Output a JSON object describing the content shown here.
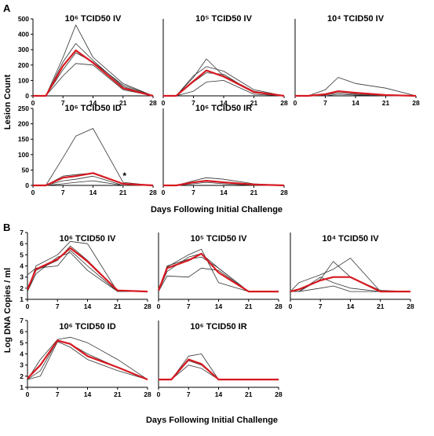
{
  "figure": {
    "panel_A_label": "A",
    "panel_B_label": "B"
  },
  "colors": {
    "individual": "#333333",
    "mean": "#d71920",
    "axis": "#000000"
  },
  "chart_data": [
    {
      "group": "A",
      "type": "line",
      "title": "10⁶ TCID50 IV",
      "x": [
        0,
        3,
        7,
        10,
        14,
        21,
        28
      ],
      "xticks": [
        0,
        7,
        14,
        21,
        28
      ],
      "ylim": [
        0,
        500
      ],
      "yticks": [
        0,
        100,
        200,
        300,
        400,
        500
      ],
      "ylabel": "Lesion Count",
      "xlabel": "",
      "series": [
        {
          "kind": "individual",
          "values": [
            0,
            0,
            250,
            460,
            250,
            80,
            0
          ]
        },
        {
          "kind": "individual",
          "values": [
            0,
            0,
            220,
            340,
            230,
            60,
            0
          ]
        },
        {
          "kind": "individual",
          "values": [
            0,
            0,
            170,
            280,
            220,
            70,
            0
          ]
        },
        {
          "kind": "individual",
          "values": [
            0,
            0,
            130,
            210,
            200,
            40,
            0
          ]
        },
        {
          "kind": "mean",
          "values": [
            0,
            0,
            195,
            295,
            215,
            50,
            0
          ]
        }
      ]
    },
    {
      "group": "A",
      "type": "line",
      "title": "10⁵ TCID50 IV",
      "x": [
        0,
        3,
        7,
        10,
        14,
        21,
        28
      ],
      "xticks": [
        0,
        7,
        14,
        21,
        28
      ],
      "ylim": [
        0,
        500
      ],
      "yticks": [],
      "ylabel": "",
      "xlabel": "",
      "series": [
        {
          "kind": "individual",
          "values": [
            0,
            0,
            120,
            240,
            130,
            30,
            0
          ]
        },
        {
          "kind": "individual",
          "values": [
            0,
            0,
            130,
            190,
            160,
            40,
            0
          ]
        },
        {
          "kind": "individual",
          "values": [
            0,
            0,
            90,
            150,
            140,
            20,
            0
          ]
        },
        {
          "kind": "individual",
          "values": [
            0,
            0,
            30,
            90,
            100,
            10,
            0
          ]
        },
        {
          "kind": "mean",
          "values": [
            0,
            0,
            95,
            165,
            125,
            25,
            0
          ]
        }
      ]
    },
    {
      "group": "A",
      "type": "line",
      "title": "10⁴ TCID50 IV",
      "x": [
        0,
        3,
        7,
        10,
        14,
        21,
        28
      ],
      "xticks": [
        0,
        7,
        14,
        21,
        28
      ],
      "ylim": [
        0,
        500
      ],
      "yticks": [],
      "ylabel": "",
      "xlabel": "",
      "series": [
        {
          "kind": "individual",
          "values": [
            0,
            0,
            40,
            120,
            80,
            50,
            0
          ]
        },
        {
          "kind": "individual",
          "values": [
            0,
            0,
            10,
            30,
            15,
            5,
            0
          ]
        },
        {
          "kind": "individual",
          "values": [
            0,
            0,
            5,
            20,
            10,
            0,
            0
          ]
        },
        {
          "kind": "individual",
          "values": [
            0,
            0,
            0,
            10,
            5,
            0,
            0
          ]
        },
        {
          "kind": "mean",
          "values": [
            0,
            0,
            10,
            30,
            20,
            5,
            0
          ]
        }
      ]
    },
    {
      "group": "A",
      "type": "line",
      "title": "10⁶ TCID50 ID",
      "x": [
        0,
        3,
        7,
        10,
        14,
        21,
        28
      ],
      "xticks": [
        0,
        7,
        14,
        21,
        28
      ],
      "ylim": [
        0,
        250
      ],
      "yticks": [
        0,
        50,
        100,
        150,
        200,
        250
      ],
      "ylabel": "",
      "xlabel": "",
      "annotation": {
        "text": "*",
        "x": 21
      },
      "series": [
        {
          "kind": "individual",
          "values": [
            0,
            0,
            90,
            160,
            185,
            10,
            0
          ]
        },
        {
          "kind": "individual",
          "values": [
            0,
            0,
            30,
            35,
            40,
            5,
            0
          ]
        },
        {
          "kind": "individual",
          "values": [
            0,
            0,
            15,
            20,
            30,
            0,
            0
          ]
        },
        {
          "kind": "individual",
          "values": [
            0,
            0,
            5,
            10,
            15,
            0,
            0
          ]
        },
        {
          "kind": "mean",
          "values": [
            0,
            0,
            25,
            30,
            40,
            5,
            0
          ]
        }
      ]
    },
    {
      "group": "A",
      "type": "line",
      "title": "10⁶ TCID50 IR",
      "x": [
        0,
        3,
        7,
        10,
        14,
        21,
        28
      ],
      "xticks": [
        0,
        7,
        14,
        21,
        28
      ],
      "ylim": [
        0,
        250
      ],
      "yticks": [],
      "ylabel": "",
      "xlabel": "Days Following Initial Challenge",
      "series": [
        {
          "kind": "individual",
          "values": [
            0,
            0,
            15,
            25,
            20,
            5,
            0
          ]
        },
        {
          "kind": "individual",
          "values": [
            0,
            0,
            10,
            15,
            10,
            0,
            0
          ]
        },
        {
          "kind": "individual",
          "values": [
            0,
            0,
            5,
            10,
            5,
            0,
            0
          ]
        },
        {
          "kind": "mean",
          "values": [
            0,
            0,
            10,
            15,
            10,
            3,
            0
          ]
        }
      ]
    },
    {
      "group": "B",
      "type": "line",
      "title": "10⁶ TCID50 IV",
      "x": [
        0,
        2,
        7,
        10,
        14,
        21,
        28
      ],
      "xticks": [
        0,
        7,
        14,
        21,
        28
      ],
      "ylim": [
        1,
        7
      ],
      "yticks": [
        1,
        2,
        3,
        4,
        5,
        6,
        7
      ],
      "ylabel": "Log DNA Copies / ml",
      "xlabel": "",
      "series": [
        {
          "kind": "individual",
          "values": [
            1.7,
            4.0,
            5.0,
            6.2,
            6.0,
            1.7,
            1.7
          ]
        },
        {
          "kind": "individual",
          "values": [
            1.7,
            3.6,
            4.5,
            5.8,
            4.5,
            1.8,
            1.7
          ]
        },
        {
          "kind": "individual",
          "values": [
            1.7,
            3.3,
            4.8,
            5.2,
            3.6,
            1.7,
            1.7
          ]
        },
        {
          "kind": "individual",
          "values": [
            3.2,
            3.8,
            4.0,
            5.4,
            4.0,
            1.7,
            1.7
          ]
        },
        {
          "kind": "mean",
          "values": [
            1.9,
            3.7,
            4.6,
            5.6,
            4.4,
            1.8,
            1.7
          ]
        }
      ]
    },
    {
      "group": "B",
      "type": "line",
      "title": "10⁵ TCID50 IV",
      "x": [
        0,
        2,
        7,
        10,
        14,
        21,
        28
      ],
      "xticks": [
        0,
        7,
        14,
        21,
        28
      ],
      "ylim": [
        1,
        7
      ],
      "yticks": [],
      "ylabel": "",
      "xlabel": "",
      "series": [
        {
          "kind": "individual",
          "values": [
            1.7,
            3.9,
            5.0,
            5.5,
            2.5,
            1.7,
            1.7
          ]
        },
        {
          "kind": "individual",
          "values": [
            1.7,
            3.5,
            4.8,
            5.1,
            3.8,
            1.7,
            1.7
          ]
        },
        {
          "kind": "individual",
          "values": [
            1.7,
            3.1,
            3.0,
            3.8,
            3.6,
            1.7,
            1.7
          ]
        },
        {
          "kind": "individual",
          "values": [
            1.7,
            4.0,
            4.6,
            4.8,
            3.8,
            1.7,
            1.7
          ]
        },
        {
          "kind": "mean",
          "values": [
            1.8,
            3.8,
            4.5,
            5.1,
            3.4,
            1.7,
            1.7
          ]
        }
      ]
    },
    {
      "group": "B",
      "type": "line",
      "title": "10⁴ TCID50 IV",
      "x": [
        0,
        2,
        7,
        10,
        14,
        21,
        28
      ],
      "xticks": [
        0,
        7,
        14,
        21,
        28
      ],
      "ylim": [
        1,
        7
      ],
      "yticks": [],
      "ylabel": "",
      "xlabel": "",
      "series": [
        {
          "kind": "individual",
          "values": [
            1.7,
            2.5,
            3.2,
            3.7,
            4.7,
            1.7,
            1.7
          ]
        },
        {
          "kind": "individual",
          "values": [
            1.7,
            1.7,
            2.8,
            4.4,
            3.0,
            1.8,
            1.7
          ]
        },
        {
          "kind": "individual",
          "values": [
            1.7,
            1.7,
            3.0,
            2.5,
            2.0,
            1.7,
            1.7
          ]
        },
        {
          "kind": "individual",
          "values": [
            1.7,
            1.7,
            2.0,
            2.2,
            1.7,
            1.7,
            1.7
          ]
        },
        {
          "kind": "mean",
          "values": [
            1.7,
            1.9,
            2.7,
            3.0,
            3.0,
            1.7,
            1.7
          ]
        }
      ]
    },
    {
      "group": "B",
      "type": "line",
      "title": "10⁶ TCID50 ID",
      "x": [
        0,
        3,
        7,
        10,
        14,
        21,
        28
      ],
      "xticks": [
        0,
        7,
        14,
        21,
        28
      ],
      "ylim": [
        1,
        7
      ],
      "yticks": [
        1,
        2,
        3,
        4,
        5,
        6,
        7
      ],
      "ylabel": "",
      "xlabel": "",
      "series": [
        {
          "kind": "individual",
          "values": [
            1.7,
            3.5,
            5.3,
            5.5,
            5.0,
            3.5,
            1.7
          ]
        },
        {
          "kind": "individual",
          "values": [
            1.7,
            2.5,
            5.2,
            4.9,
            4.0,
            2.8,
            1.7
          ]
        },
        {
          "kind": "individual",
          "values": [
            1.7,
            2.0,
            5.1,
            4.6,
            3.5,
            2.5,
            1.7
          ]
        },
        {
          "kind": "mean",
          "values": [
            1.8,
            3.0,
            5.2,
            4.9,
            3.8,
            2.8,
            1.7
          ]
        }
      ]
    },
    {
      "group": "B",
      "type": "line",
      "title": "10⁶ TCID50 IR",
      "x": [
        0,
        3,
        7,
        10,
        14,
        21,
        28
      ],
      "xticks": [
        0,
        7,
        14,
        21,
        28
      ],
      "ylim": [
        1,
        7
      ],
      "yticks": [],
      "ylabel": "",
      "xlabel": "Days Following Initial Challenge",
      "series": [
        {
          "kind": "individual",
          "values": [
            1.7,
            1.7,
            3.8,
            4.0,
            1.7,
            1.7,
            1.7
          ]
        },
        {
          "kind": "individual",
          "values": [
            1.7,
            1.7,
            3.0,
            2.7,
            1.7,
            1.7,
            1.7
          ]
        },
        {
          "kind": "individual",
          "values": [
            1.7,
            1.7,
            3.4,
            3.0,
            1.7,
            1.7,
            1.7
          ]
        },
        {
          "kind": "mean",
          "values": [
            1.7,
            1.7,
            3.5,
            3.1,
            1.7,
            1.7,
            1.7
          ]
        }
      ]
    }
  ]
}
